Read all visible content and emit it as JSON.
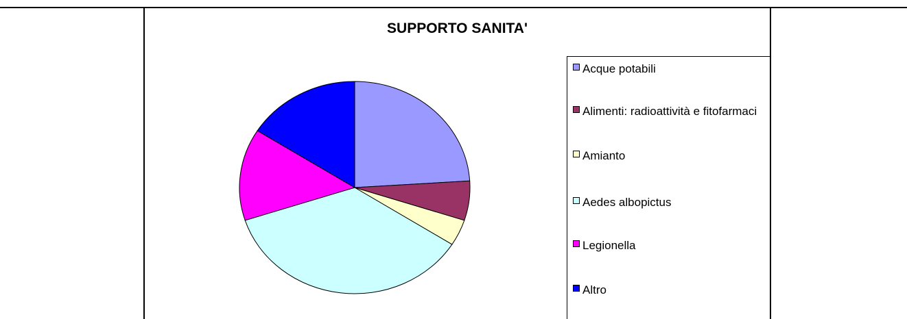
{
  "chart_data": {
    "type": "pie",
    "title": "SUPPORTO SANITA'",
    "labels": [
      "Acque potabili",
      "Alimenti: radioattività e fitofarmaci",
      "Amianto",
      "Aedes albopictus",
      "Legionella",
      "Altro"
    ],
    "values": [
      24,
      6,
      4,
      36,
      14,
      16
    ],
    "colors": [
      "#9999ff",
      "#993366",
      "#ffffcc",
      "#ccffff",
      "#ff00ff",
      "#0000ff"
    ],
    "legend_position": "right"
  }
}
